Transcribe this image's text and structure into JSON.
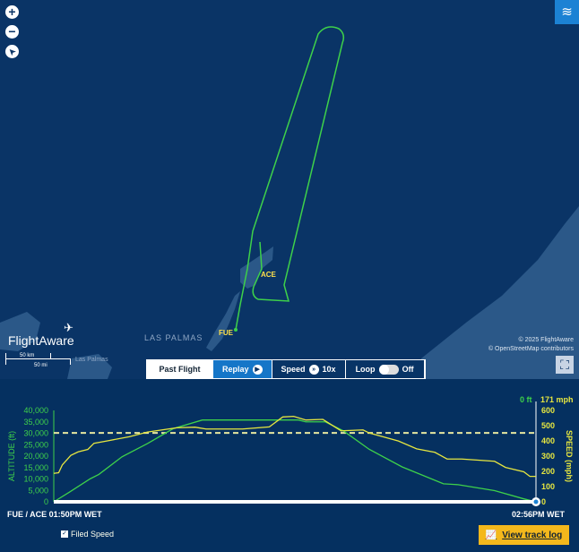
{
  "map": {
    "zoom_in": "+",
    "zoom_out": "−",
    "compass": "➤",
    "layers_icon": "layers-icon",
    "airports": {
      "origin": "FUE",
      "destination": "ACE"
    },
    "city_label": "LAS PALMAS",
    "city_small": "Las Palmas",
    "logo": "FlightAware",
    "scale_km": "50 km",
    "scale_mi": "50 mi",
    "attribution_1": "© 2025 FlightAware",
    "attribution_2": "© OpenStreetMap contributors",
    "track_color": "#3ed14a"
  },
  "controls": {
    "past_flight": "Past Flight",
    "replay": "Replay",
    "speed_label": "Speed",
    "speed_value": "10x",
    "loop_label": "Loop",
    "loop_state": "Off"
  },
  "chart_data": {
    "type": "line",
    "ylabel": "ALTITUDE (ft)",
    "y2label": "SPEED (mph)",
    "ylim": [
      0,
      40000
    ],
    "y2lim": [
      0,
      600
    ],
    "yticks": [
      "0",
      "5,000",
      "10,000",
      "15,000",
      "20,000",
      "25,000",
      "30,000",
      "35,000",
      "40,000"
    ],
    "y2ticks": [
      "0",
      "100",
      "200",
      "300",
      "400",
      "500",
      "600"
    ],
    "current_altitude": "0 ft",
    "current_speed": "171 mph",
    "start_label": "FUE / ACE 01:50PM WET",
    "end_label": "02:56PM WET",
    "xlim": [
      "13:50:00",
      "14:56:00"
    ],
    "filed_speed": 452,
    "series": [
      {
        "axis": "left",
        "color": "#3ed14a",
        "x": [
          "13:50:00",
          "13:52:10",
          "13:55:00",
          "13:56:10",
          "13:59:20",
          "14:02:50",
          "14:06:20",
          "14:10:20",
          "14:23:30",
          "14:24:30",
          "14:27:10",
          "14:29:40",
          "14:33:10",
          "14:37:40",
          "14:43:20",
          "14:45:20",
          "14:50:20",
          "14:54:20",
          "14:56:00"
        ],
        "values": [
          0,
          4300,
          10100,
          12000,
          19700,
          25500,
          32000,
          35800,
          35800,
          35000,
          35000,
          31000,
          23000,
          15300,
          7900,
          7500,
          4900,
          1300,
          0
        ]
      },
      {
        "axis": "right",
        "color": "#e6e640",
        "x": [
          "13:50:00",
          "13:50:40",
          "13:51:10",
          "13:52:20",
          "13:53:20",
          "13:54:40",
          "13:55:30",
          "13:57:40",
          "14:00:20",
          "14:02:50",
          "14:06:50",
          "14:09:20",
          "14:10:50",
          "14:15:50",
          "14:19:30",
          "14:21:20",
          "14:22:50",
          "14:24:30",
          "14:26:50",
          "14:29:20",
          "14:32:20",
          "14:33:10",
          "14:37:10",
          "14:39:40",
          "14:42:10",
          "14:43:50",
          "14:45:50",
          "14:50:20",
          "14:51:50",
          "14:54:20",
          "14:55:10",
          "14:56:00"
        ],
        "values": [
          187,
          191,
          242,
          305,
          328,
          344,
          384,
          403,
          427,
          458,
          486,
          490,
          478,
          478,
          492,
          557,
          561,
          537,
          541,
          466,
          472,
          452,
          399,
          348,
          325,
          281,
          281,
          266,
          226,
          197,
          167,
          167
        ]
      }
    ]
  },
  "footer": {
    "filed_speed": "Filed Speed",
    "view_track_log": "View track log"
  }
}
